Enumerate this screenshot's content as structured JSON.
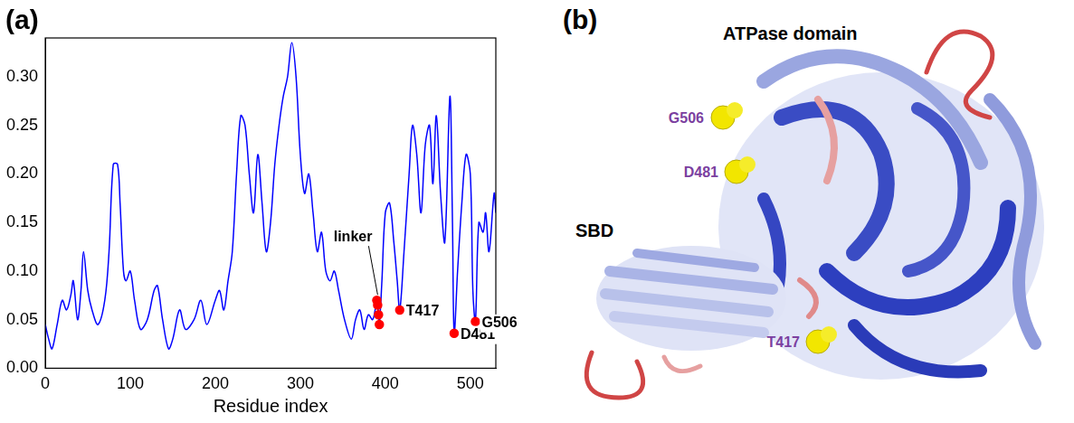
{
  "chart_data": {
    "type": "line",
    "panel_label": "(a)",
    "x_label": "Residue index",
    "xlim": [
      0,
      530
    ],
    "xticks": [
      0,
      100,
      200,
      300,
      400,
      500
    ],
    "ylim": [
      0,
      0.34
    ],
    "yticks": [
      {
        "value": 0,
        "label": "0.00"
      },
      {
        "value": 0.05,
        "label": "0.05"
      },
      {
        "value": 0.1,
        "label": "0.10"
      },
      {
        "value": 0.15,
        "label": "0.15"
      },
      {
        "value": 0.2,
        "label": "0.20"
      },
      {
        "value": 0.25,
        "label": "0.25"
      },
      {
        "value": 0.3,
        "label": "0.30"
      }
    ],
    "grid": false,
    "series": [
      {
        "color": "#0000ff",
        "x": [
          0,
          4,
          8,
          14,
          20,
          25,
          30,
          33,
          38,
          42,
          45,
          50,
          55,
          62,
          70,
          75,
          80,
          85,
          88,
          92,
          95,
          100,
          105,
          112,
          120,
          128,
          132,
          138,
          145,
          150,
          158,
          165,
          175,
          183,
          190,
          200,
          205,
          210,
          215,
          220,
          225,
          230,
          235,
          240,
          245,
          250,
          255,
          260,
          265,
          270,
          275,
          280,
          285,
          290,
          295,
          300,
          305,
          310,
          315,
          320,
          325,
          330,
          335,
          340,
          345,
          352,
          360,
          365,
          370,
          375,
          380,
          385,
          388,
          390,
          391,
          392,
          393,
          396,
          400,
          405,
          410,
          414,
          417,
          422,
          428,
          432,
          437,
          442,
          447,
          452,
          456,
          460,
          465,
          470,
          476,
          479,
          481,
          485,
          490,
          495,
          500,
          503,
          506,
          510,
          515,
          518,
          522,
          528,
          530
        ],
        "values": [
          0.045,
          0.03,
          0.02,
          0.045,
          0.07,
          0.06,
          0.075,
          0.09,
          0.05,
          0.08,
          0.12,
          0.08,
          0.06,
          0.045,
          0.07,
          0.12,
          0.21,
          0.21,
          0.17,
          0.1,
          0.09,
          0.1,
          0.07,
          0.04,
          0.05,
          0.08,
          0.085,
          0.05,
          0.02,
          0.03,
          0.06,
          0.04,
          0.05,
          0.07,
          0.045,
          0.07,
          0.08,
          0.06,
          0.09,
          0.12,
          0.2,
          0.26,
          0.25,
          0.2,
          0.16,
          0.22,
          0.17,
          0.12,
          0.15,
          0.21,
          0.25,
          0.28,
          0.3,
          0.335,
          0.3,
          0.22,
          0.18,
          0.2,
          0.16,
          0.12,
          0.14,
          0.1,
          0.09,
          0.1,
          0.08,
          0.05,
          0.03,
          0.05,
          0.06,
          0.04,
          0.055,
          0.05,
          0.06,
          0.07,
          0.065,
          0.055,
          0.045,
          0.09,
          0.16,
          0.17,
          0.13,
          0.09,
          0.06,
          0.12,
          0.2,
          0.25,
          0.22,
          0.16,
          0.23,
          0.25,
          0.19,
          0.26,
          0.18,
          0.13,
          0.28,
          0.15,
          0.036,
          0.1,
          0.17,
          0.22,
          0.2,
          0.08,
          0.048,
          0.15,
          0.14,
          0.16,
          0.12,
          0.18,
          0.16
        ]
      },
      {
        "type": "scatter",
        "color": "#ff0000",
        "marker": "circle",
        "x": [
          390,
          391,
          392,
          393,
          417,
          481,
          506
        ],
        "values": [
          0.07,
          0.065,
          0.055,
          0.045,
          0.06,
          0.036,
          0.048
        ]
      }
    ],
    "annotations": [
      {
        "text": "T417",
        "x": 417,
        "y": 0.06
      },
      {
        "text": "D481",
        "x": 481,
        "y": 0.036
      },
      {
        "text": "G506",
        "x": 506,
        "y": 0.048
      }
    ],
    "callout": {
      "text": "linker",
      "x": 391,
      "y": 0.07
    }
  },
  "structure_panel": {
    "panel_label": "(b)",
    "domains": [
      "ATPase domain",
      "SBD"
    ],
    "residues": [
      "G506",
      "D481",
      "T417"
    ]
  }
}
